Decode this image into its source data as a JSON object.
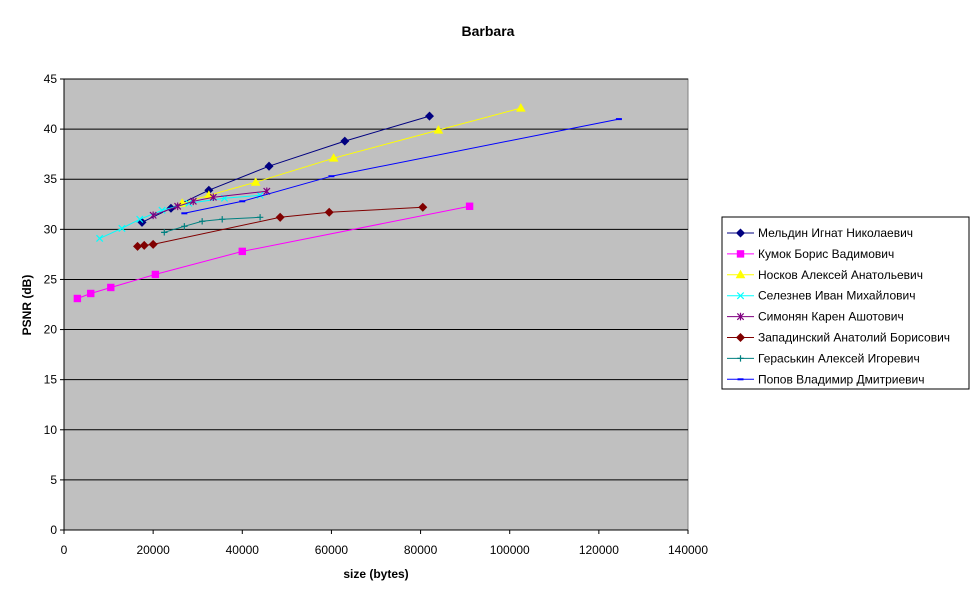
{
  "chart_data": {
    "type": "line",
    "title": "Barbara",
    "xlabel": "size (bytes)",
    "ylabel": "PSNR (dB)",
    "xlim": [
      0,
      140000
    ],
    "ylim": [
      0,
      45
    ],
    "x_ticks": [
      0,
      20000,
      40000,
      60000,
      80000,
      100000,
      120000,
      140000
    ],
    "y_ticks": [
      0,
      5,
      10,
      15,
      20,
      25,
      30,
      35,
      40,
      45
    ],
    "grid": "horizontal",
    "plot_background": "#c0c0c0",
    "legend_position": "right",
    "series": [
      {
        "name": "Мельдин Игнат Николаевич",
        "color": "#000080",
        "marker": "diamond",
        "points": [
          [
            17500,
            30.7
          ],
          [
            24000,
            32.1
          ],
          [
            32500,
            33.9
          ],
          [
            46000,
            36.3
          ],
          [
            63000,
            38.8
          ],
          [
            82000,
            41.3
          ]
        ]
      },
      {
        "name": "Кумок Борис Вадимович",
        "color": "#ff00ff",
        "marker": "square",
        "points": [
          [
            3000,
            23.1
          ],
          [
            6000,
            23.6
          ],
          [
            10500,
            24.2
          ],
          [
            20500,
            25.5
          ],
          [
            40000,
            27.8
          ],
          [
            91000,
            32.3
          ]
        ]
      },
      {
        "name": "Носков Алексей Анатольевич",
        "color": "#ffff00",
        "marker": "triangle",
        "points": [
          [
            26500,
            32.6
          ],
          [
            32500,
            33.4
          ],
          [
            43000,
            34.7
          ],
          [
            60500,
            37.1
          ],
          [
            84000,
            39.9
          ],
          [
            102500,
            42.1
          ]
        ]
      },
      {
        "name": "Селезнев Иван Михайлович",
        "color": "#00ffff",
        "marker": "x",
        "points": [
          [
            8000,
            29.1
          ],
          [
            13000,
            30.1
          ],
          [
            17000,
            31.0
          ],
          [
            22000,
            31.9
          ],
          [
            28000,
            32.6
          ],
          [
            36000,
            33.1
          ],
          [
            44000,
            33.4
          ]
        ]
      },
      {
        "name": "Симонян Карен Ашотович",
        "color": "#800080",
        "marker": "star",
        "points": [
          [
            20000,
            31.4
          ],
          [
            25500,
            32.3
          ],
          [
            29000,
            32.8
          ],
          [
            33500,
            33.2
          ],
          [
            45500,
            33.8
          ]
        ]
      },
      {
        "name": "Западинский Анатолий Борисович",
        "color": "#800000",
        "marker": "diamond",
        "points": [
          [
            16500,
            28.3
          ],
          [
            18000,
            28.4
          ],
          [
            20000,
            28.5
          ],
          [
            48500,
            31.2
          ],
          [
            59500,
            31.7
          ],
          [
            80500,
            32.2
          ]
        ]
      },
      {
        "name": "Гераськин Алексей Игоревич",
        "color": "#008080",
        "marker": "plus",
        "points": [
          [
            22500,
            29.7
          ],
          [
            27000,
            30.3
          ],
          [
            31000,
            30.8
          ],
          [
            35500,
            31.0
          ],
          [
            44000,
            31.2
          ]
        ]
      },
      {
        "name": "Попов Владимир Дмитриевич",
        "color": "#0000ff",
        "marker": "dash",
        "points": [
          [
            27000,
            31.6
          ],
          [
            40000,
            32.8
          ],
          [
            60000,
            35.3
          ],
          [
            124500,
            41.0
          ]
        ]
      }
    ]
  }
}
